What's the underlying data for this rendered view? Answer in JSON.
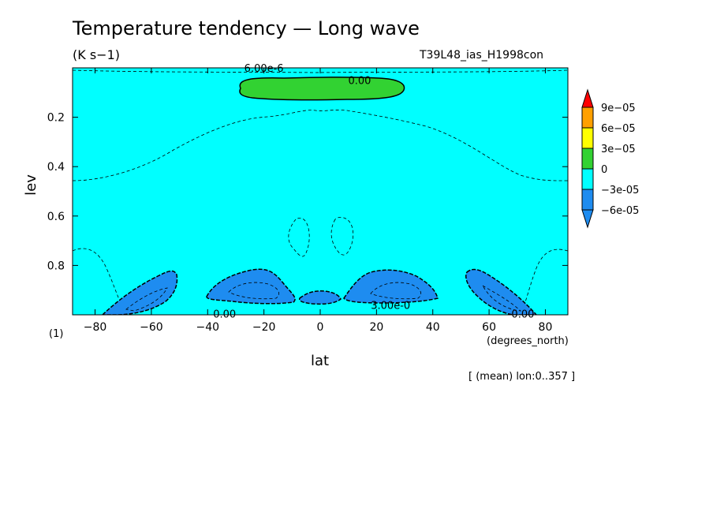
{
  "title": "Temperature tendency — Long wave",
  "units": "(K s−1)",
  "dataset": "T39L48_ias_H1998con",
  "scale_factor": "(1)",
  "footer": "[ (mean) lon:0..357 ]",
  "chart_data": {
    "type": "contour",
    "xlabel": "lat",
    "xunit": "(degrees_north)",
    "ylabel": "lev",
    "xlim": [
      -88,
      88
    ],
    "ylim": [
      1.0,
      0.0
    ],
    "xticks": [
      -80,
      -60,
      -40,
      -20,
      0,
      20,
      40,
      60,
      80
    ],
    "yticks": [
      0.2,
      0.4,
      0.6,
      0.8
    ],
    "color_levels": [
      {
        "label": "-6e-05",
        "color": "#1e8cf0"
      },
      {
        "label": "-3e-05",
        "color": "#00ffff"
      },
      {
        "label": "0",
        "color": "#32d232"
      },
      {
        "label": "3e-05",
        "color": "#ffff00"
      },
      {
        "label": "6e-05",
        "color": "#ffa000"
      },
      {
        "label": "9e-05",
        "color": "#ff0000"
      }
    ],
    "contour_labels": [
      {
        "text": "6.00e-6",
        "x": -20,
        "y": 0.0
      },
      {
        "text": "0.00",
        "x": 14,
        "y": 0.05
      },
      {
        "text": "0.00",
        "x": -34,
        "y": 0.995
      },
      {
        "text": "3.00e-0",
        "x": 25,
        "y": 0.96
      },
      {
        "text": "0.00",
        "x": 72,
        "y": 0.995
      }
    ]
  }
}
